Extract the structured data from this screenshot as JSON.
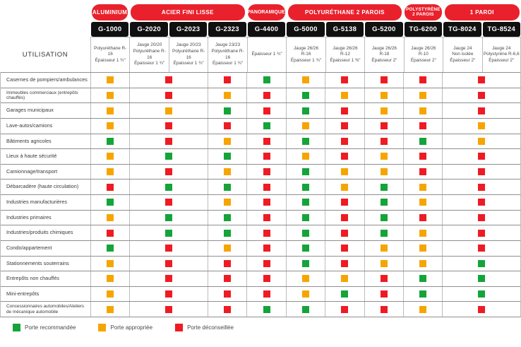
{
  "chart_data": {
    "type": "table",
    "corner_label": "UTILISATION",
    "category_groups": [
      {
        "label": "ALUMINIUM",
        "span": 1
      },
      {
        "label": "ACIER FINI LISSE",
        "span": 3
      },
      {
        "label": "PANORAMIQUE",
        "span": 1
      },
      {
        "label": "POLYURÉTHANE 2 PAROIS",
        "span": 3
      },
      {
        "label": "POLYSTYRÈNE 2 PAROIS",
        "span": 1
      },
      {
        "label": "1 PAROI",
        "span": 2
      }
    ],
    "columns": [
      {
        "code": "G-1000",
        "spec_lines": [
          "Polyuréthane R-16",
          "Épaisseur 1 ¾\""
        ]
      },
      {
        "code": "G-2020",
        "spec_lines": [
          "Jauge 20/20",
          "Polyuréthane R-16",
          "Épaisseur 1 ¾\""
        ]
      },
      {
        "code": "G-2023",
        "spec_lines": [
          "Jauge 20/23",
          "Polyuréthane R-16",
          "Épaisseur 1 ¾\""
        ]
      },
      {
        "code": "G-2323",
        "spec_lines": [
          "Jauge 23/23",
          "Polyuréthane R-16",
          "Épaisseur 1 ¾\""
        ]
      },
      {
        "code": "G-4400",
        "spec_lines": [
          "Épaisseur 1 ¾\""
        ]
      },
      {
        "code": "G-5000",
        "spec_lines": [
          "Jauge 26/26",
          "R-16",
          "Épaisseur 1 ¾\""
        ]
      },
      {
        "code": "G-5138",
        "spec_lines": [
          "Jauge 26/26",
          "R-12",
          "Épaisseur 1 ⅜\""
        ]
      },
      {
        "code": "G-5200",
        "spec_lines": [
          "Jauge 26/26",
          "R-18",
          "Épaisseur 2\""
        ]
      },
      {
        "code": "TG-6200",
        "spec_lines": [
          "Jauge 26/26",
          "R-10",
          "Épaisseur 2\""
        ]
      },
      {
        "code": "TG-8024",
        "spec_lines": [
          "Jauge 24",
          "Non isolée",
          "Épaisseur 2\""
        ]
      },
      {
        "code": "TG-8524",
        "spec_lines": [
          "Jauge 24",
          "Polystyrène R-6,6",
          "Épaisseur 2\""
        ]
      }
    ],
    "body_column_spans": [
      1,
      2,
      1,
      1,
      1,
      1,
      1,
      1,
      2
    ],
    "rows": [
      {
        "label": "Casernes de pompiers/ambulances",
        "ratings": [
          "Y",
          "R",
          "R",
          "G",
          "Y",
          "R",
          "R",
          "R",
          "R"
        ]
      },
      {
        "label": "Immeubles commerciaux (entrepôts chauffés)",
        "ratings": [
          "Y",
          "R",
          "Y",
          "R",
          "G",
          "Y",
          "Y",
          "Y",
          "R"
        ]
      },
      {
        "label": "Garages municipaux",
        "ratings": [
          "Y",
          "Y",
          "G",
          "R",
          "G",
          "R",
          "Y",
          "Y",
          "R"
        ]
      },
      {
        "label": "Lave-autos/camions",
        "ratings": [
          "Y",
          "R",
          "R",
          "G",
          "Y",
          "R",
          "R",
          "R",
          "Y"
        ]
      },
      {
        "label": "Bâtiments agricoles",
        "ratings": [
          "G",
          "R",
          "Y",
          "R",
          "G",
          "R",
          "R",
          "G",
          "Y"
        ]
      },
      {
        "label": "Lieux à haute sécurité",
        "ratings": [
          "Y",
          "G",
          "G",
          "R",
          "Y",
          "R",
          "Y",
          "R",
          "R"
        ]
      },
      {
        "label": "Camionnage/transport",
        "ratings": [
          "Y",
          "R",
          "Y",
          "R",
          "G",
          "Y",
          "Y",
          "R",
          "R"
        ]
      },
      {
        "label": "Débarcadère (haute circulation)",
        "ratings": [
          "R",
          "G",
          "G",
          "R",
          "G",
          "Y",
          "G",
          "Y",
          "R"
        ]
      },
      {
        "label": "Industries manufacturières",
        "ratings": [
          "G",
          "R",
          "Y",
          "R",
          "G",
          "R",
          "G",
          "Y",
          "R"
        ]
      },
      {
        "label": "Industries primaires",
        "ratings": [
          "Y",
          "G",
          "G",
          "R",
          "G",
          "R",
          "G",
          "R",
          "R"
        ]
      },
      {
        "label": "Industries/produits chimiques",
        "ratings": [
          "R",
          "G",
          "G",
          "R",
          "G",
          "R",
          "G",
          "Y",
          "R"
        ]
      },
      {
        "label": "Condo/appartement",
        "ratings": [
          "G",
          "R",
          "Y",
          "R",
          "G",
          "R",
          "Y",
          "Y",
          "R"
        ]
      },
      {
        "label": "Stationnements souterrains",
        "ratings": [
          "Y",
          "R",
          "R",
          "R",
          "G",
          "R",
          "Y",
          "Y",
          "G"
        ]
      },
      {
        "label": "Entrepôts non chauffés",
        "ratings": [
          "Y",
          "R",
          "R",
          "R",
          "Y",
          "Y",
          "R",
          "G",
          "G"
        ]
      },
      {
        "label": "Mini-entrepôts",
        "ratings": [
          "Y",
          "R",
          "R",
          "R",
          "Y",
          "G",
          "R",
          "G",
          "G"
        ]
      },
      {
        "label": "Concessionnaires automobiles/Ateliers de mécanique automobile",
        "ratings": [
          "Y",
          "R",
          "R",
          "G",
          "G",
          "R",
          "R",
          "Y",
          "R"
        ]
      }
    ],
    "rating_scale": {
      "G": "Porte recommandée",
      "Y": "Porte appropriée",
      "R": "Porte déconseillée"
    },
    "colors": {
      "G": "#14a43a",
      "Y": "#f6a500",
      "R": "#ee1b24",
      "category_red": "#e9212c",
      "header_black": "#101010"
    }
  },
  "legend": {
    "order": [
      "G",
      "Y",
      "R"
    ]
  }
}
